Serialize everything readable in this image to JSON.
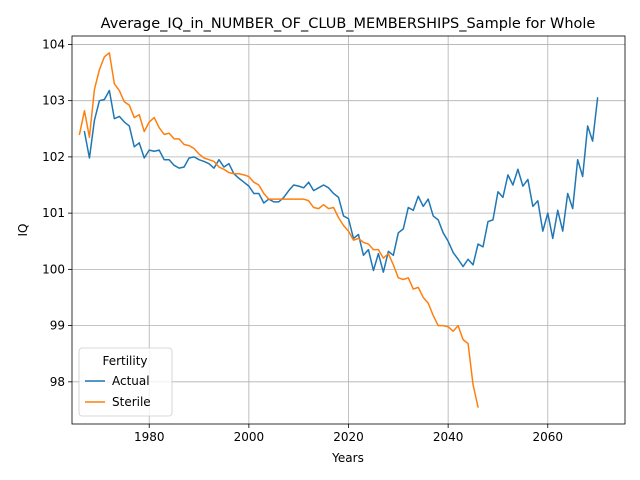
{
  "chart_data": {
    "type": "line",
    "title": "Average_IQ_in_NUMBER_OF_CLUB_MEMBERSHIPS_Sample for Whole",
    "xlabel": "Years",
    "ylabel": "IQ",
    "xlim": [
      1964.5,
      2075.5
    ],
    "ylim": [
      97.25,
      104.15
    ],
    "xticks": [
      1980,
      2000,
      2020,
      2040,
      2060
    ],
    "yticks": [
      98,
      99,
      100,
      101,
      102,
      103,
      104
    ],
    "grid": true,
    "legend": {
      "title": "Fertility",
      "placement": "lower-left"
    },
    "series": [
      {
        "name": "Actual",
        "color": "#1f77b4",
        "x": [
          1967,
          1968,
          1969,
          1970,
          1971,
          1972,
          1973,
          1974,
          1975,
          1976,
          1977,
          1978,
          1979,
          1980,
          1981,
          1982,
          1983,
          1984,
          1985,
          1986,
          1987,
          1988,
          1989,
          1990,
          1991,
          1992,
          1993,
          1994,
          1995,
          1996,
          1997,
          1998,
          1999,
          2000,
          2001,
          2002,
          2003,
          2004,
          2005,
          2006,
          2007,
          2008,
          2009,
          2010,
          2011,
          2012,
          2013,
          2014,
          2015,
          2016,
          2017,
          2018,
          2019,
          2020,
          2021,
          2022,
          2023,
          2024,
          2025,
          2026,
          2027,
          2028,
          2029,
          2030,
          2031,
          2032,
          2033,
          2034,
          2035,
          2036,
          2037,
          2038,
          2039,
          2040,
          2041,
          2042,
          2043,
          2044,
          2045,
          2046,
          2047,
          2048,
          2049,
          2050,
          2051,
          2052,
          2053,
          2054,
          2055,
          2056,
          2057,
          2058,
          2059,
          2060,
          2061,
          2062,
          2063,
          2064,
          2065,
          2066,
          2067,
          2068,
          2069,
          2070
        ],
        "values": [
          102.45,
          101.98,
          102.65,
          103.0,
          103.02,
          103.18,
          102.68,
          102.72,
          102.62,
          102.55,
          102.18,
          102.25,
          101.98,
          102.12,
          102.1,
          102.12,
          101.95,
          101.95,
          101.85,
          101.8,
          101.82,
          101.98,
          102.0,
          101.95,
          101.92,
          101.88,
          101.8,
          101.95,
          101.82,
          101.88,
          101.7,
          101.62,
          101.55,
          101.48,
          101.35,
          101.35,
          101.18,
          101.25,
          101.2,
          101.2,
          101.28,
          101.4,
          101.5,
          101.48,
          101.45,
          101.55,
          101.4,
          101.45,
          101.5,
          101.45,
          101.35,
          101.28,
          100.95,
          100.9,
          100.55,
          100.62,
          100.25,
          100.35,
          99.98,
          100.28,
          99.95,
          100.32,
          100.25,
          100.65,
          100.72,
          101.1,
          101.05,
          101.3,
          101.12,
          101.25,
          100.95,
          100.88,
          100.65,
          100.5,
          100.3,
          100.18,
          100.05,
          100.18,
          100.08,
          100.45,
          100.4,
          100.85,
          100.88,
          101.38,
          101.28,
          101.68,
          101.5,
          101.78,
          101.48,
          101.6,
          101.12,
          101.22,
          100.68,
          101.0,
          100.55,
          101.05,
          100.68,
          101.35,
          101.08,
          101.95,
          101.65,
          102.55,
          102.28,
          103.05
        ]
      },
      {
        "name": "Sterile",
        "color": "#ff7f0e",
        "x": [
          1966,
          1967,
          1968,
          1969,
          1970,
          1971,
          1972,
          1973,
          1974,
          1975,
          1976,
          1977,
          1978,
          1979,
          1980,
          1981,
          1982,
          1983,
          1984,
          1985,
          1986,
          1987,
          1988,
          1989,
          1990,
          1991,
          1992,
          1993,
          1994,
          1995,
          1996,
          1997,
          1998,
          1999,
          2000,
          2001,
          2002,
          2003,
          2004,
          2005,
          2006,
          2007,
          2008,
          2009,
          2010,
          2011,
          2012,
          2013,
          2014,
          2015,
          2016,
          2017,
          2018,
          2019,
          2020,
          2021,
          2022,
          2023,
          2024,
          2025,
          2026,
          2027,
          2028,
          2029,
          2030,
          2031,
          2032,
          2033,
          2034,
          2035,
          2036,
          2037,
          2038,
          2039,
          2040,
          2041,
          2042,
          2043,
          2044,
          2045,
          2046
        ],
        "values": [
          102.4,
          102.82,
          102.35,
          103.2,
          103.55,
          103.78,
          103.85,
          103.3,
          103.18,
          102.98,
          102.92,
          102.7,
          102.75,
          102.45,
          102.62,
          102.7,
          102.52,
          102.4,
          102.42,
          102.32,
          102.32,
          102.22,
          102.2,
          102.15,
          102.05,
          101.98,
          101.95,
          101.92,
          101.82,
          101.78,
          101.72,
          101.7,
          101.7,
          101.68,
          101.65,
          101.55,
          101.5,
          101.35,
          101.25,
          101.25,
          101.25,
          101.25,
          101.25,
          101.25,
          101.25,
          101.25,
          101.22,
          101.1,
          101.08,
          101.15,
          101.08,
          101.1,
          100.92,
          100.78,
          100.68,
          100.52,
          100.55,
          100.48,
          100.45,
          100.35,
          100.35,
          100.2,
          100.28,
          100.08,
          99.85,
          99.82,
          99.85,
          99.65,
          99.68,
          99.5,
          99.4,
          99.18,
          99.0,
          99.0,
          98.98,
          98.9,
          99.0,
          98.75,
          98.68,
          97.95,
          97.55
        ]
      }
    ]
  }
}
